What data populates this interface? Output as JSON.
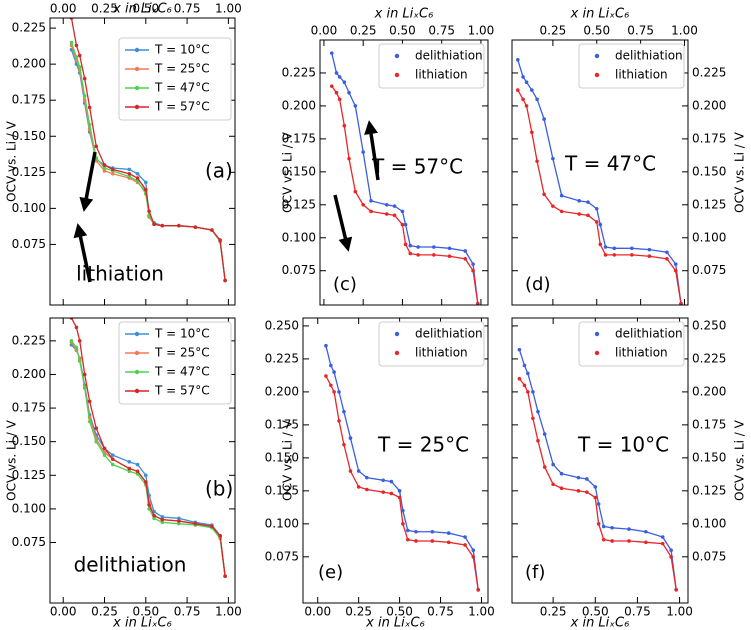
{
  "chart_data": [
    {
      "type": "line",
      "x_axis": "top",
      "y_axis": "left",
      "legend": "upper right",
      "legend_style": "line",
      "xlabel": "x in LiₓC₆",
      "ylabel": "OCV vs. Li / V",
      "annotations": [
        "(a)",
        "lithiation"
      ],
      "xlim": [
        -0.08,
        1.04
      ],
      "ylim": [
        0.033,
        0.232
      ],
      "xticks": [
        {
          "value": 0,
          "label": "0.00"
        },
        0.25,
        {
          "value": 0.5,
          "label": "0.50"
        },
        0.75,
        {
          "value": 1,
          "label": "1.00"
        }
      ],
      "yticks": [
        0.075,
        {
          "value": 0.1,
          "label": "0.100"
        },
        0.125,
        {
          "value": 0.15,
          "label": "0.150"
        },
        0.175,
        {
          "value": 0.2,
          "label": "0.200"
        },
        0.225
      ],
      "x": [
        0.05,
        0.08,
        0.1,
        0.13,
        0.16,
        0.2,
        0.25,
        0.3,
        0.4,
        0.45,
        0.5,
        0.52,
        0.55,
        0.6,
        0.7,
        0.8,
        0.9,
        0.95,
        0.98
      ],
      "series": [
        {
          "name": "T = 10°C",
          "color": "#3d8fd6",
          "values": [
            0.21,
            0.2,
            0.194,
            0.173,
            0.153,
            0.134,
            0.13,
            0.128,
            0.127,
            0.124,
            0.118,
            0.095,
            0.09,
            0.088,
            0.088,
            0.087,
            0.085,
            0.077,
            0.05
          ]
        },
        {
          "name": "T = 25°C",
          "color": "#f07b52",
          "values": [
            0.213,
            0.203,
            0.196,
            0.175,
            0.155,
            0.133,
            0.126,
            0.124,
            0.121,
            0.118,
            0.112,
            0.094,
            0.089,
            0.088,
            0.088,
            0.087,
            0.085,
            0.077,
            0.05
          ]
        },
        {
          "name": "T = 47°C",
          "color": "#4fd14f",
          "values": [
            0.215,
            0.205,
            0.198,
            0.178,
            0.158,
            0.135,
            0.128,
            0.126,
            0.122,
            0.119,
            0.11,
            0.095,
            0.089,
            0.088,
            0.088,
            0.087,
            0.085,
            0.077,
            0.05
          ]
        },
        {
          "name": "T = 57°C",
          "color": "#d62728",
          "values": [
            0.232,
            0.213,
            0.206,
            0.19,
            0.17,
            0.143,
            0.13,
            0.127,
            0.124,
            0.121,
            0.113,
            0.098,
            0.089,
            0.088,
            0.088,
            0.087,
            0.085,
            0.078,
            0.05
          ]
        }
      ]
    },
    {
      "type": "line",
      "x_axis": "bottom",
      "y_axis": "left",
      "legend": "upper right",
      "legend_style": "line",
      "xlabel": "x in LiₓC₆",
      "ylabel": "OCV vs. Li / V",
      "annotations": [
        "(b)",
        "delithiation"
      ],
      "xlim": [
        -0.08,
        1.04
      ],
      "ylim": [
        0.03,
        0.242
      ],
      "xticks": [
        {
          "value": 0,
          "label": "0.00"
        },
        0.25,
        {
          "value": 0.5,
          "label": "0.50"
        },
        0.75,
        {
          "value": 1,
          "label": "1.00"
        }
      ],
      "yticks": [
        0.075,
        {
          "value": 0.1,
          "label": "0.100"
        },
        0.125,
        {
          "value": 0.15,
          "label": "0.150"
        },
        0.175,
        {
          "value": 0.2,
          "label": "0.200"
        },
        0.225
      ],
      "x": [
        0.05,
        0.08,
        0.1,
        0.13,
        0.16,
        0.2,
        0.25,
        0.3,
        0.4,
        0.45,
        0.5,
        0.52,
        0.55,
        0.6,
        0.7,
        0.8,
        0.9,
        0.95,
        0.98
      ],
      "series": [
        {
          "name": "T = 10°C",
          "color": "#3d8fd6",
          "values": [
            0.222,
            0.218,
            0.212,
            0.192,
            0.17,
            0.155,
            0.145,
            0.14,
            0.135,
            0.133,
            0.125,
            0.11,
            0.098,
            0.094,
            0.093,
            0.09,
            0.088,
            0.08,
            0.05
          ]
        },
        {
          "name": "T = 25°C",
          "color": "#f07b52",
          "values": [
            0.224,
            0.218,
            0.212,
            0.19,
            0.168,
            0.152,
            0.142,
            0.137,
            0.13,
            0.128,
            0.12,
            0.105,
            0.095,
            0.092,
            0.091,
            0.089,
            0.087,
            0.079,
            0.05
          ]
        },
        {
          "name": "T = 47°C",
          "color": "#4fd14f",
          "values": [
            0.225,
            0.22,
            0.21,
            0.19,
            0.165,
            0.15,
            0.14,
            0.133,
            0.128,
            0.126,
            0.118,
            0.1,
            0.093,
            0.09,
            0.089,
            0.088,
            0.086,
            0.078,
            0.05
          ]
        },
        {
          "name": "T = 57°C",
          "color": "#d62728",
          "values": [
            0.242,
            0.235,
            0.225,
            0.2,
            0.18,
            0.16,
            0.145,
            0.137,
            0.13,
            0.128,
            0.12,
            0.103,
            0.095,
            0.092,
            0.091,
            0.089,
            0.087,
            0.08,
            0.05
          ]
        }
      ]
    },
    {
      "type": "line",
      "x_axis": "top",
      "y_axis": "left",
      "legend": "upper right",
      "legend_style": "marker",
      "xlabel": "x in LiₓC₆",
      "ylabel": "OCV vs. Li / V",
      "annotations": [
        "(c)",
        "T = 57°C"
      ],
      "xlim": [
        -0.025,
        1.045
      ],
      "ylim": [
        0.049,
        0.25
      ],
      "xticks": [
        {
          "value": 0,
          "label": "0.00"
        },
        0.25,
        {
          "value": 0.5,
          "label": "0.50"
        },
        0.75,
        {
          "value": 1,
          "label": "1.00"
        }
      ],
      "yticks": [
        0.075,
        {
          "value": 0.1,
          "label": "0.100"
        },
        0.125,
        {
          "value": 0.15,
          "label": "0.150"
        },
        0.175,
        {
          "value": 0.2,
          "label": "0.200"
        },
        0.225
      ],
      "x": [
        0.05,
        0.08,
        0.1,
        0.13,
        0.16,
        0.2,
        0.25,
        0.3,
        0.4,
        0.45,
        0.5,
        0.52,
        0.55,
        0.6,
        0.7,
        0.8,
        0.9,
        0.95,
        0.98
      ],
      "series": [
        {
          "name": "delithiation",
          "color": "#3b5ee0",
          "values": [
            0.24,
            0.225,
            0.222,
            0.218,
            0.21,
            0.2,
            0.165,
            0.128,
            0.125,
            0.124,
            0.12,
            0.11,
            0.094,
            0.093,
            0.093,
            0.092,
            0.09,
            0.08,
            0.05
          ]
        },
        {
          "name": "lithiation",
          "color": "#e8262a",
          "values": [
            0.215,
            0.21,
            0.205,
            0.185,
            0.16,
            0.135,
            0.125,
            0.12,
            0.118,
            0.117,
            0.11,
            0.095,
            0.088,
            0.087,
            0.087,
            0.086,
            0.084,
            0.075,
            0.05
          ]
        }
      ]
    },
    {
      "type": "line",
      "x_axis": "top",
      "y_axis": "right",
      "legend": "upper right",
      "legend_style": "marker",
      "xlabel": "x in LiₓC₆",
      "ylabel": "OCV vs. Li / V",
      "annotations": [
        "(d)",
        "T = 47°C"
      ],
      "xlim": [
        0.017,
        1.02
      ],
      "ylim": [
        0.049,
        0.25
      ],
      "xticks": [
        0.25,
        {
          "value": 0.5,
          "label": "0.50"
        },
        0.75,
        {
          "value": 1,
          "label": "1.00"
        }
      ],
      "yticks": [
        0.075,
        {
          "value": 0.1,
          "label": "0.100"
        },
        0.125,
        {
          "value": 0.15,
          "label": "0.150"
        },
        0.175,
        {
          "value": 0.2,
          "label": "0.200"
        },
        0.225
      ],
      "x": [
        0.05,
        0.08,
        0.1,
        0.13,
        0.16,
        0.2,
        0.25,
        0.3,
        0.4,
        0.45,
        0.5,
        0.52,
        0.55,
        0.6,
        0.7,
        0.8,
        0.9,
        0.95,
        0.98
      ],
      "series": [
        {
          "name": "delithiation",
          "color": "#3b5ee0",
          "values": [
            0.235,
            0.222,
            0.218,
            0.212,
            0.205,
            0.19,
            0.16,
            0.132,
            0.128,
            0.127,
            0.122,
            0.11,
            0.093,
            0.092,
            0.092,
            0.091,
            0.089,
            0.08,
            0.05
          ]
        },
        {
          "name": "lithiation",
          "color": "#e8262a",
          "values": [
            0.212,
            0.205,
            0.2,
            0.18,
            0.158,
            0.133,
            0.124,
            0.12,
            0.118,
            0.117,
            0.112,
            0.095,
            0.087,
            0.087,
            0.087,
            0.086,
            0.084,
            0.075,
            0.05
          ]
        }
      ]
    },
    {
      "type": "line",
      "x_axis": "bottom",
      "y_axis": "left",
      "legend": "upper right",
      "legend_style": "marker",
      "xlabel": "x in LiₓC₆",
      "ylabel": "OCV vs. Li / V",
      "annotations": [
        "(e)",
        "T = 25°C"
      ],
      "xlim": [
        -0.09,
        1.04
      ],
      "ylim": [
        0.04,
        0.256
      ],
      "xticks": [
        {
          "value": 0,
          "label": "0.00"
        },
        0.25,
        {
          "value": 0.5,
          "label": "0.50"
        },
        0.75,
        {
          "value": 1,
          "label": "1.00"
        }
      ],
      "yticks": [
        0.075,
        {
          "value": 0.1,
          "label": "0.100"
        },
        0.125,
        {
          "value": 0.15,
          "label": "0.150"
        },
        0.175,
        {
          "value": 0.2,
          "label": "0.200"
        },
        0.225,
        {
          "value": 0.25,
          "label": "0.250"
        }
      ],
      "x": [
        0.05,
        0.08,
        0.1,
        0.13,
        0.16,
        0.2,
        0.25,
        0.3,
        0.4,
        0.45,
        0.5,
        0.52,
        0.55,
        0.6,
        0.7,
        0.8,
        0.9,
        0.95,
        0.98
      ],
      "series": [
        {
          "name": "delithiation",
          "color": "#3b5ee0",
          "values": [
            0.235,
            0.22,
            0.215,
            0.2,
            0.185,
            0.165,
            0.14,
            0.135,
            0.133,
            0.132,
            0.125,
            0.11,
            0.095,
            0.094,
            0.094,
            0.093,
            0.09,
            0.08,
            0.05
          ]
        },
        {
          "name": "lithiation",
          "color": "#e8262a",
          "values": [
            0.212,
            0.205,
            0.2,
            0.178,
            0.16,
            0.14,
            0.128,
            0.126,
            0.124,
            0.123,
            0.12,
            0.1,
            0.088,
            0.087,
            0.087,
            0.086,
            0.084,
            0.075,
            0.05
          ]
        }
      ]
    },
    {
      "type": "line",
      "x_axis": "bottom",
      "y_axis": "right",
      "legend": "upper right",
      "legend_style": "marker",
      "xlabel": "x in LiₓC₆",
      "ylabel": "OCV vs. Li / V",
      "annotations": [
        "(f)",
        "T = 10°C"
      ],
      "xlim": [
        0.006,
        1.05
      ],
      "ylim": [
        0.04,
        0.256
      ],
      "xticks": [
        0.25,
        {
          "value": 0.5,
          "label": "0.50"
        },
        0.75,
        {
          "value": 1,
          "label": "1.00"
        }
      ],
      "yticks": [
        0.075,
        {
          "value": 0.1,
          "label": "0.100"
        },
        0.125,
        {
          "value": 0.15,
          "label": "0.150"
        },
        0.175,
        {
          "value": 0.2,
          "label": "0.200"
        },
        0.225,
        {
          "value": 0.25,
          "label": "0.250"
        }
      ],
      "x": [
        0.05,
        0.08,
        0.1,
        0.13,
        0.16,
        0.2,
        0.25,
        0.3,
        0.4,
        0.45,
        0.5,
        0.52,
        0.55,
        0.6,
        0.7,
        0.8,
        0.9,
        0.95,
        0.98
      ],
      "series": [
        {
          "name": "delithiation",
          "color": "#3b5ee0",
          "values": [
            0.232,
            0.22,
            0.214,
            0.2,
            0.185,
            0.168,
            0.145,
            0.138,
            0.135,
            0.134,
            0.128,
            0.115,
            0.098,
            0.097,
            0.096,
            0.094,
            0.09,
            0.08,
            0.05
          ]
        },
        {
          "name": "lithiation",
          "color": "#e8262a",
          "values": [
            0.21,
            0.205,
            0.2,
            0.18,
            0.163,
            0.143,
            0.13,
            0.127,
            0.125,
            0.124,
            0.12,
            0.1,
            0.088,
            0.087,
            0.087,
            0.086,
            0.085,
            0.075,
            0.05
          ]
        }
      ]
    }
  ]
}
